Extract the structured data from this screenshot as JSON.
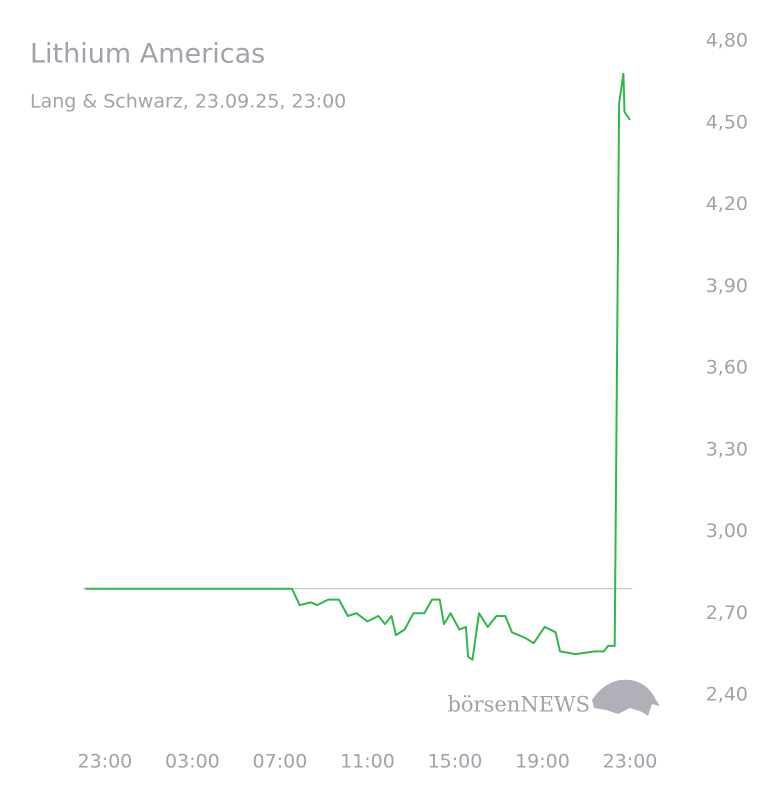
{
  "chart_data": {
    "type": "line",
    "title": "Lithium Americas",
    "subtitle": "Lang & Schwarz, 23.09.25, 23:00",
    "watermark": "börsenNEWS",
    "x": [
      -0.9,
      8.55,
      8.9,
      9.4,
      9.7,
      10.2,
      10.7,
      11.1,
      11.5,
      12.0,
      12.5,
      12.8,
      13.1,
      13.3,
      13.7,
      14.1,
      14.6,
      14.95,
      15.3,
      15.5,
      15.8,
      16.2,
      16.5,
      16.6,
      16.8,
      17.1,
      17.5,
      17.9,
      18.3,
      18.6,
      19.2,
      19.6,
      20.1,
      20.6,
      20.8,
      21.5,
      22.4,
      22.8,
      23.0,
      23.3,
      23.5,
      23.7,
      23.75,
      24.0
    ],
    "series": [
      {
        "color": "#2eb84b",
        "values": [
          2.79,
          2.79,
          2.73,
          2.74,
          2.73,
          2.75,
          2.75,
          2.69,
          2.7,
          2.67,
          2.69,
          2.66,
          2.69,
          2.62,
          2.64,
          2.7,
          2.7,
          2.75,
          2.75,
          2.66,
          2.7,
          2.64,
          2.65,
          2.54,
          2.53,
          2.7,
          2.65,
          2.69,
          2.69,
          2.63,
          2.61,
          2.59,
          2.65,
          2.63,
          2.56,
          2.55,
          2.56,
          2.56,
          2.58,
          2.58,
          4.57,
          4.68,
          4.54,
          4.51
        ]
      }
    ],
    "reference_line": 2.79,
    "reference_color": "#b8b8b8",
    "xlim": [
      -1,
      24.1
    ],
    "xticks": [
      {
        "value": 0,
        "label": "23:00"
      },
      {
        "value": 4,
        "label": "03:00"
      },
      {
        "value": 8,
        "label": "07:00"
      },
      {
        "value": 12,
        "label": "11:00"
      },
      {
        "value": 16,
        "label": "15:00"
      },
      {
        "value": 20,
        "label": "19:00"
      },
      {
        "value": 24,
        "label": "23:00"
      }
    ],
    "ylim": [
      2.4,
      4.8
    ],
    "yticks": [
      {
        "value": 2.4,
        "label": "2,40"
      },
      {
        "value": 2.7,
        "label": "2,70"
      },
      {
        "value": 3.0,
        "label": "3,00"
      },
      {
        "value": 3.3,
        "label": "3,30"
      },
      {
        "value": 3.6,
        "label": "3,60"
      },
      {
        "value": 3.9,
        "label": "3,90"
      },
      {
        "value": 4.2,
        "label": "4,20"
      },
      {
        "value": 4.5,
        "label": "4,50"
      },
      {
        "value": 4.8,
        "label": "4,80"
      }
    ]
  }
}
